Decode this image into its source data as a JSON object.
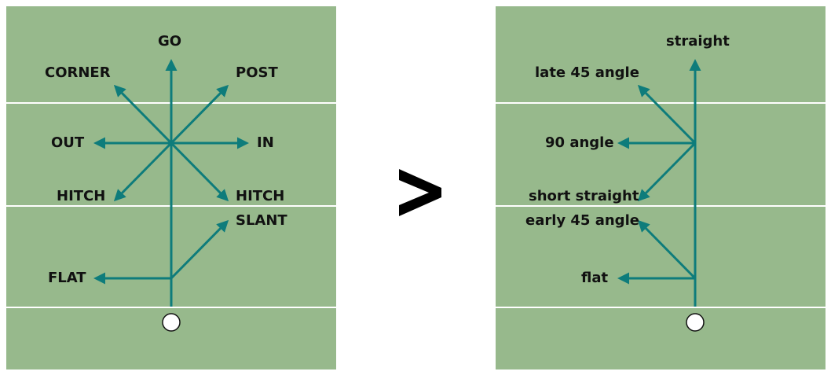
{
  "colors": {
    "field": "#97b98c",
    "route": "#0e7c7b",
    "line": "#ffffff",
    "text": "#111111"
  },
  "left_labels": {
    "go": "GO",
    "corner": "CORNER",
    "post": "POST",
    "out": "OUT",
    "in": "IN",
    "hitch_left": "HITCH",
    "hitch_right": "HITCH",
    "slant": "SLANT",
    "flat": "FLAT"
  },
  "right_labels": {
    "straight": "straight",
    "late45": "late 45 angle",
    "angle90": "90 angle",
    "short_straight": "short straight",
    "early45": "early 45 angle",
    "flat": "flat"
  },
  "comparison_symbol": ">"
}
